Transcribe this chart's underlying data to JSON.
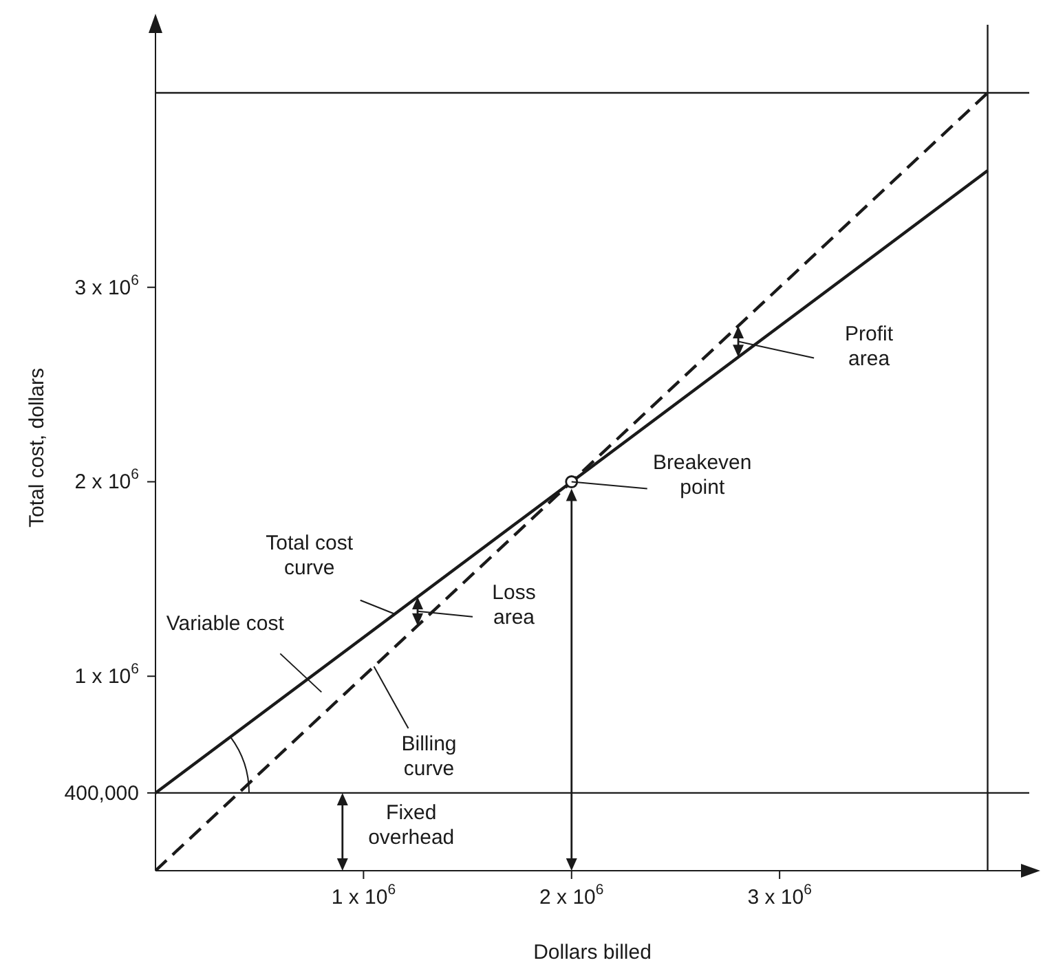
{
  "chart_data": {
    "type": "line",
    "xlabel": "Dollars billed",
    "ylabel": "Total cost, dollars",
    "xlim": [
      0,
      4200000
    ],
    "ylim": [
      0,
      4350000
    ],
    "xticks": [
      {
        "value": 1000000,
        "label": "1 x 10$^{6}$"
      },
      {
        "value": 2000000,
        "label": "2 x 10$^{6}$"
      },
      {
        "value": 3000000,
        "label": "3 x 10$^{6}$"
      }
    ],
    "yticks": [
      {
        "value": 400000,
        "label": "400,000"
      },
      {
        "value": 1000000,
        "label": "1 x 10$^{6}$"
      },
      {
        "value": 2000000,
        "label": "2 x 10$^{6}$"
      },
      {
        "value": 3000000,
        "label": "3 x 10$^{6}$"
      }
    ],
    "series": [
      {
        "x": [
          0,
          4000000
        ],
        "values": [
          400000,
          3600000
        ],
        "color": "#1a1a1a",
        "line_style": "solid",
        "marker": "none"
      },
      {
        "x": [
          0,
          4000000
        ],
        "values": [
          0,
          4000000
        ],
        "color": "#1a1a1a",
        "line_style": "dashed",
        "marker": "none"
      },
      {
        "type": "scatter",
        "x": [
          2000000
        ],
        "values": [
          2000000
        ],
        "color": "#1a1a1a",
        "marker": "circle"
      }
    ],
    "ref_lines": [
      {
        "axis": "y",
        "value": 400000,
        "color": "#1a1a1a"
      },
      {
        "axis": "y",
        "value": 4000000,
        "color": "#1a1a1a"
      },
      {
        "axis": "x",
        "value": 4000000,
        "color": "#1a1a1a"
      }
    ],
    "annotations": [
      {
        "text": "Total cost curve",
        "x": 1150000,
        "y": 1320000
      },
      "Variable cost",
      {
        "text": "Billing curve",
        "x": 1050000,
        "y": 1050000
      },
      "Loss area",
      "Breakeven point",
      "Profit area",
      "Fixed overhead"
    ],
    "grid": false
  }
}
